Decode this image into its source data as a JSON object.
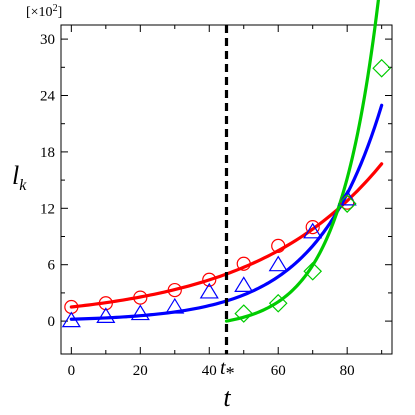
{
  "chart_data": {
    "type": "line",
    "title": "",
    "xlabel": "t",
    "ylabel_main": "l",
    "ylabel_sub": "k",
    "y_multiplier": "[×10",
    "y_multiplier_exp": "2",
    "y_multiplier_close": "]",
    "xlim": [
      -3,
      93
    ],
    "ylim": [
      -3.5,
      31.5
    ],
    "x_ticks": [
      0,
      20,
      40,
      60,
      80
    ],
    "y_ticks": [
      0,
      6,
      12,
      18,
      24,
      30
    ],
    "x_tick_labels": [
      "0",
      "20",
      "40",
      "60",
      "80"
    ],
    "y_tick_labels": [
      "0",
      "6",
      "12",
      "18",
      "24",
      "30"
    ],
    "grid": false,
    "vline": {
      "x": 45,
      "label_main": "t",
      "label_sub": "*",
      "style": "dashed",
      "color": "#000000"
    },
    "series": [
      {
        "color": "#ff0000",
        "marker": "circle",
        "line": {
          "type": "exp",
          "a": 1.5,
          "b": 0.0268,
          "x_start": 0,
          "x_end": 90
        },
        "points": [
          [
            0,
            1.5
          ],
          [
            10,
            1.9
          ],
          [
            20,
            2.5
          ],
          [
            30,
            3.3
          ],
          [
            40,
            4.4
          ],
          [
            50,
            6.1
          ],
          [
            60,
            8.0
          ],
          [
            70,
            10.0
          ],
          [
            80,
            12.6
          ]
        ]
      },
      {
        "color": "#0000ff",
        "marker": "triangle",
        "line": {
          "type": "exp",
          "a": 0.2,
          "b": 0.0527,
          "x_start": 0,
          "x_end": 90
        },
        "points": [
          [
            0,
            0.05
          ],
          [
            10,
            0.5
          ],
          [
            20,
            0.8
          ],
          [
            30,
            1.5
          ],
          [
            40,
            3.1
          ],
          [
            50,
            3.8
          ],
          [
            60,
            6.0
          ],
          [
            70,
            9.5
          ],
          [
            80,
            13.0
          ]
        ]
      },
      {
        "color": "#00cc00",
        "marker": "diamond",
        "line": {
          "type": "exp_shift",
          "a": 0.77,
          "b": 0.0866,
          "x_start": 45,
          "x_end": 90
        },
        "points": [
          [
            50,
            0.8
          ],
          [
            60,
            1.9
          ],
          [
            70,
            5.3
          ],
          [
            80,
            12.5
          ],
          [
            90,
            26.9
          ]
        ]
      }
    ]
  }
}
